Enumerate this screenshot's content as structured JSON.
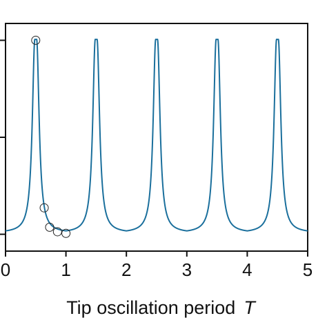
{
  "chart_data": {
    "type": "line",
    "title": "",
    "xlabel": {
      "text": "Tip oscillation period",
      "symbol": "T"
    },
    "ylabel": "",
    "xlim": [
      0,
      5
    ],
    "ylim": [
      0,
      1
    ],
    "x_ticks": [
      "0",
      "1",
      "2",
      "3",
      "4",
      "5"
    ],
    "y_tick_values": [
      0.074,
      0.5,
      0.926
    ],
    "grid": false,
    "legend": "none",
    "series": [
      {
        "kind": "line",
        "color": "#1a6f9c",
        "peak_period": 1,
        "peak_centers": [
          0.5,
          1.5,
          2.5,
          3.5,
          4.5
        ],
        "peak_flat_halfwidth": 0.015,
        "baseline": 0.08,
        "peak_height": 0.93,
        "lorentz_gamma": 0.05
      },
      {
        "kind": "scatter",
        "marker": "open-circle",
        "color": "#222222",
        "points": [
          {
            "x": 0.5,
            "y": 0.926
          },
          {
            "x": 0.64,
            "y": 0.19
          },
          {
            "x": 0.73,
            "y": 0.105
          },
          {
            "x": 0.86,
            "y": 0.085
          },
          {
            "x": 1.0,
            "y": 0.078
          }
        ]
      }
    ]
  }
}
